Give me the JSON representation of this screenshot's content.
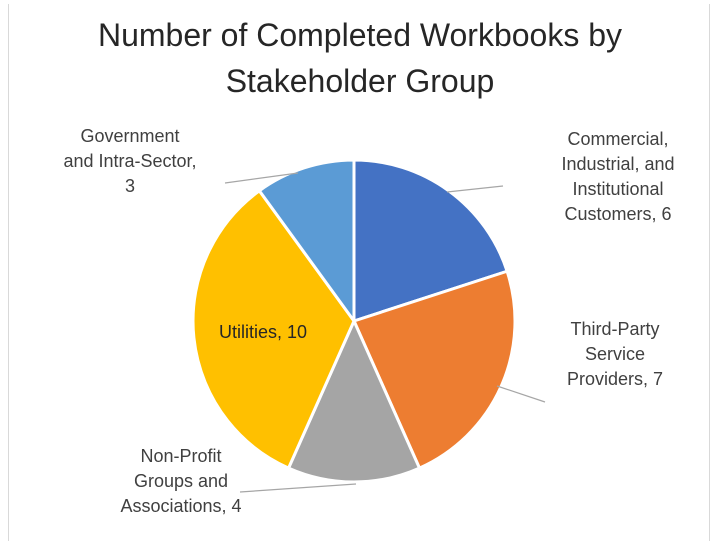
{
  "chart_data": {
    "type": "pie",
    "title": "Number of Completed Workbooks by Stakeholder Group",
    "title_lines": [
      "Number of Completed Workbooks by",
      "Stakeholder Group"
    ],
    "slices": [
      {
        "label": "Commercial, Industrial, and Institutional Customers",
        "value": 6,
        "color": "#4472c4",
        "label_lines": [
          "Commercial,",
          "Industrial, and",
          "Institutional",
          "Customers, 6"
        ]
      },
      {
        "label": "Third-Party Service Providers",
        "value": 7,
        "color": "#ed7d31",
        "label_lines": [
          "Third-Party",
          "Service",
          "Providers, 7"
        ]
      },
      {
        "label": "Non-Profit Groups and Associations",
        "value": 4,
        "color": "#a5a5a5",
        "label_lines": [
          "Non-Profit",
          "Groups and",
          "Associations, 4"
        ]
      },
      {
        "label": "Utilities",
        "value": 10,
        "color": "#ffc000",
        "label_lines": [
          "Utilities, 10"
        ]
      },
      {
        "label": "Government and Intra-Sector",
        "value": 3,
        "color": "#5b9bd5",
        "label_lines": [
          "Government",
          "and Intra-Sector,",
          "3"
        ]
      }
    ],
    "start_angle_deg": 0,
    "direction": "clockwise",
    "legend": "none",
    "leader_line_color": "#a6a6a6",
    "slice_border_color": "#ffffff"
  }
}
